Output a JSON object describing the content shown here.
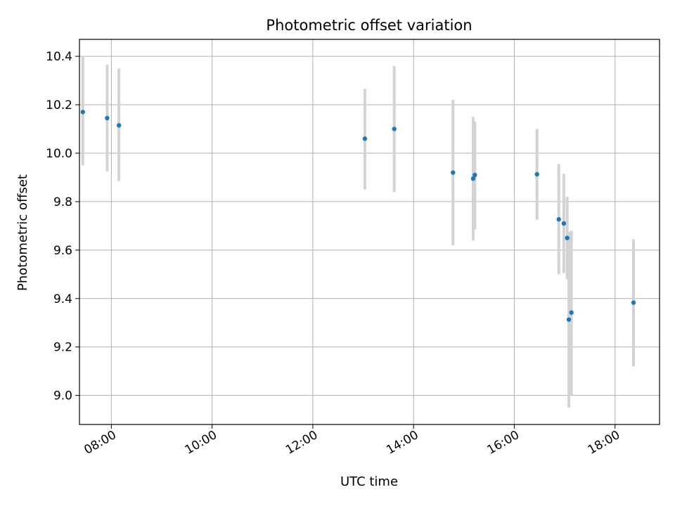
{
  "chart_data": {
    "type": "scatter",
    "title": "Photometric offset variation",
    "xlabel": "UTC time",
    "ylabel": "Photometric offset",
    "x_unit": "hours",
    "xlim": [
      "07:22",
      "18:53"
    ],
    "ylim": [
      8.88,
      10.47
    ],
    "x_ticks": [
      "08:00",
      "10:00",
      "12:00",
      "14:00",
      "16:00",
      "18:00"
    ],
    "y_ticks": [
      "9.0",
      "9.2",
      "9.4",
      "9.6",
      "9.8",
      "10.0",
      "10.2",
      "10.4"
    ],
    "grid": true,
    "colors": {
      "point": "#1f77b4",
      "errorbar": "#d3d3d3",
      "grid": "#b0b0b0"
    },
    "points": [
      {
        "x": "07:26",
        "y": 10.17,
        "err_low": 9.95,
        "err_high": 10.4
      },
      {
        "x": "07:55",
        "y": 10.145,
        "err_low": 9.925,
        "err_high": 10.365
      },
      {
        "x": "08:09",
        "y": 10.115,
        "err_low": 9.885,
        "err_high": 10.35
      },
      {
        "x": "13:02",
        "y": 10.06,
        "err_low": 9.85,
        "err_high": 10.265
      },
      {
        "x": "13:37",
        "y": 10.1,
        "err_low": 9.84,
        "err_high": 10.36
      },
      {
        "x": "14:47",
        "y": 9.92,
        "err_low": 9.62,
        "err_high": 10.22
      },
      {
        "x": "15:11",
        "y": 9.895,
        "err_low": 9.64,
        "err_high": 10.15
      },
      {
        "x": "15:13",
        "y": 9.91,
        "err_low": 9.685,
        "err_high": 10.13
      },
      {
        "x": "16:27",
        "y": 9.913,
        "err_low": 9.725,
        "err_high": 10.1
      },
      {
        "x": "16:53",
        "y": 9.727,
        "err_low": 9.5,
        "err_high": 9.955
      },
      {
        "x": "16:59",
        "y": 9.71,
        "err_low": 9.505,
        "err_high": 9.915
      },
      {
        "x": "17:03",
        "y": 9.65,
        "err_low": 9.48,
        "err_high": 9.82
      },
      {
        "x": "17:05",
        "y": 9.313,
        "err_low": 8.95,
        "err_high": 9.675
      },
      {
        "x": "17:08",
        "y": 9.342,
        "err_low": 9.0,
        "err_high": 9.68
      },
      {
        "x": "18:22",
        "y": 9.383,
        "err_low": 9.12,
        "err_high": 9.645
      }
    ]
  }
}
